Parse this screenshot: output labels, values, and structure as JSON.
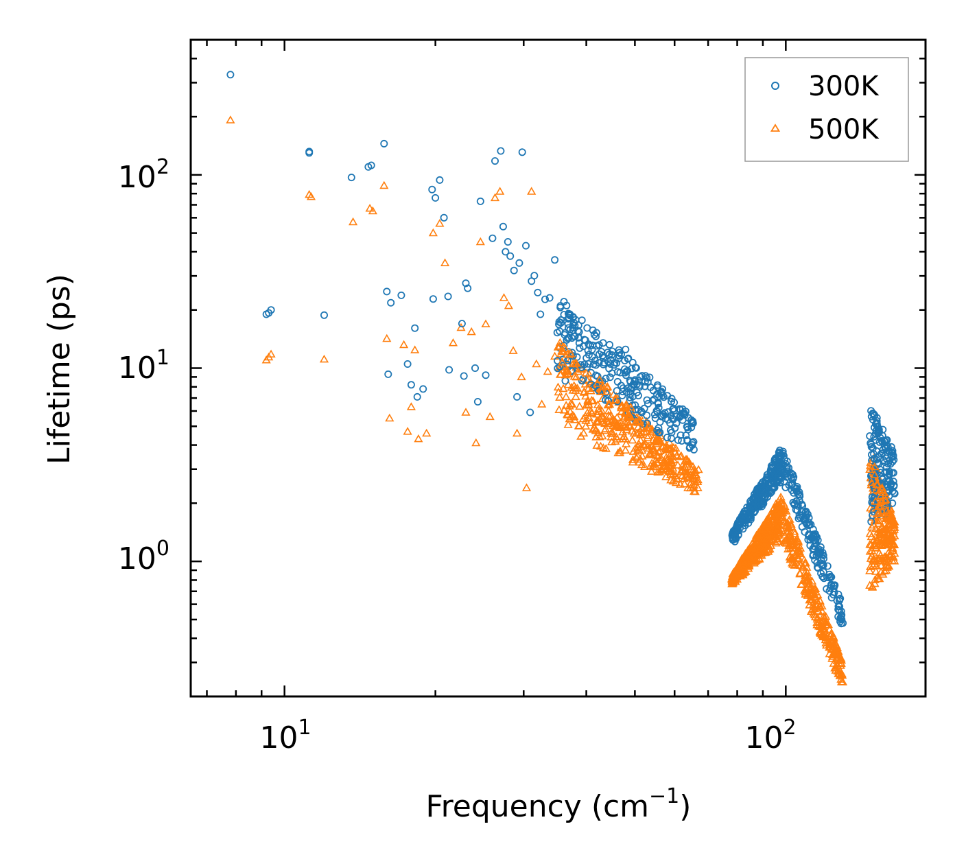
{
  "chart_data": {
    "type": "scatter",
    "xscale": "log",
    "yscale": "log",
    "xlim": [
      6.5,
      190
    ],
    "ylim": [
      0.2,
      500
    ],
    "xlabel": "Frequency (cm",
    "xlabel_sup": "−1",
    "xlabel_close": ")",
    "ylabel": "Lifetime (ps)",
    "x_major_ticks": [
      {
        "value": 10,
        "base": "10",
        "exp": "1"
      },
      {
        "value": 100,
        "base": "10",
        "exp": "2"
      }
    ],
    "y_major_ticks": [
      {
        "value": 1,
        "base": "10",
        "exp": "0"
      },
      {
        "value": 10,
        "base": "10",
        "exp": "1"
      },
      {
        "value": 100,
        "base": "10",
        "exp": "2"
      }
    ],
    "legend_position": "top-right",
    "series": [
      {
        "name": "300K",
        "marker": "circle",
        "color": "#1f77b4",
        "x": [
          7.8,
          9.2,
          9.3,
          9.4,
          11.2,
          11.2,
          12.0,
          13.6,
          14.7,
          14.9,
          15.8,
          16.0,
          16.1,
          16.3,
          17.1,
          17.6,
          17.9,
          18.2,
          18.4,
          18.9,
          19.7,
          19.8,
          20.0,
          20.4,
          20.8,
          21.2,
          21.3,
          22.6,
          22.8,
          23.0,
          23.2,
          24.0,
          24.3,
          24.6,
          25.2,
          26.0,
          26.3,
          27.0,
          27.3,
          27.6,
          27.9,
          28.2,
          28.7,
          29.1,
          29.4,
          29.8,
          30.3,
          30.9,
          31.1,
          31.5,
          32.0,
          32.4,
          33.1,
          33.8,
          34.6,
          35.5,
          36.1,
          36.9,
          37.8,
          38.6,
          39.2,
          40.4,
          41.8,
          43.1,
          44.7,
          46.2,
          47.9,
          49.0,
          51.1,
          52.8,
          54.6,
          56.5,
          58.2,
          60.1,
          61.7,
          63.6,
          65.1
        ],
        "y": [
          330,
          19.0,
          19.3,
          20.0,
          130,
          132,
          18.8,
          97,
          110,
          112,
          145,
          24.9,
          9.3,
          21.8,
          23.8,
          10.5,
          8.2,
          16.1,
          7.1,
          7.8,
          84,
          22.8,
          76,
          94,
          60,
          23.5,
          9.8,
          17.0,
          9.1,
          27.5,
          25.9,
          10.0,
          6.7,
          73,
          9.2,
          47,
          118,
          133,
          54,
          40,
          45,
          38,
          32,
          7.1,
          35,
          131,
          43,
          5.9,
          28.2,
          30.1,
          24.6,
          19.0,
          22.7,
          23.1,
          36.3,
          20.6,
          18.9,
          18.3,
          14.6,
          14.4,
          17.7,
          13.3,
          14.6,
          11.6,
          10.5,
          8.5,
          12.5,
          7.8,
          8.0,
          5.7,
          6.9,
          7.5,
          5.4,
          4.9,
          4.5,
          4.2,
          4.0
        ]
      },
      {
        "name": "500K",
        "marker": "triangle",
        "color": "#ff7f0e",
        "x": [
          7.8,
          9.2,
          9.3,
          9.4,
          11.2,
          11.3,
          12.0,
          13.7,
          14.8,
          15.0,
          15.8,
          16.0,
          16.2,
          17.3,
          17.6,
          17.9,
          18.2,
          18.5,
          19.2,
          19.8,
          20.4,
          20.9,
          21.7,
          22.5,
          23.0,
          23.6,
          24.1,
          24.6,
          25.2,
          25.7,
          26.3,
          26.9,
          27.4,
          28.0,
          28.6,
          29.1,
          29.7,
          30.4,
          31.1,
          31.8,
          32.6,
          33.5,
          34.6,
          35.7,
          36.8,
          38.1,
          39.5,
          41.0,
          42.6,
          44.3,
          46.1,
          47.9,
          49.8,
          51.7,
          53.6,
          55.6,
          57.6,
          59.6,
          61.6,
          63.8,
          65.6
        ],
        "y": [
          192,
          11.0,
          11.4,
          11.8,
          79,
          77,
          11.1,
          57,
          67,
          65,
          88,
          14.2,
          5.5,
          13.2,
          4.7,
          6.3,
          12.4,
          4.3,
          4.6,
          50,
          56,
          35,
          13.5,
          16.2,
          5.9,
          15.4,
          4.1,
          45,
          16.9,
          5.6,
          76,
          82,
          23.1,
          21.0,
          12.3,
          4.6,
          9.0,
          2.4,
          82,
          10.5,
          6.5,
          9.6,
          11.5,
          10.7,
          8.2,
          7.9,
          8.6,
          6.8,
          5.5,
          6.0,
          5.1,
          4.3,
          4.6,
          3.5,
          3.6,
          3.5,
          3.0,
          2.6,
          2.5,
          2.4,
          2.3
        ]
      }
    ],
    "clusters": {
      "note": "dense point clouds read from the figure, lifetime given as [low, high] envelope in ps",
      "300K": [
        {
          "x_range": [
            35,
            66
          ],
          "lifetime_at_start": [
            9,
            24
          ],
          "lifetime_at_end": [
            3.5,
            5.5
          ]
        },
        {
          "x_range": [
            78,
            98
          ],
          "lifetime_at_start": [
            1.2,
            1.4
          ],
          "lifetime_at_end": [
            2.6,
            3.9
          ]
        },
        {
          "x_range": [
            98,
            130
          ],
          "lifetime_at_start": [
            2.6,
            4.0
          ],
          "lifetime_at_end": [
            0.45,
            0.6
          ]
        },
        {
          "x_range": [
            147,
            165
          ],
          "lifetime_at_start": [
            1.5,
            6.7
          ],
          "lifetime_at_end": [
            1.9,
            3.6
          ]
        }
      ],
      "500K": [
        {
          "x_range": [
            35,
            67
          ],
          "lifetime_at_start": [
            5,
            14
          ],
          "lifetime_at_end": [
            2.2,
            3.0
          ]
        },
        {
          "x_range": [
            78,
            98
          ],
          "lifetime_at_start": [
            0.75,
            0.85
          ],
          "lifetime_at_end": [
            1.3,
            2.2
          ]
        },
        {
          "x_range": [
            98,
            130
          ],
          "lifetime_at_start": [
            1.3,
            2.2
          ],
          "lifetime_at_end": [
            0.22,
            0.3
          ]
        },
        {
          "x_range": [
            147,
            165
          ],
          "lifetime_at_start": [
            0.7,
            4.0
          ],
          "lifetime_at_end": [
            1.0,
            1.6
          ]
        }
      ]
    }
  }
}
